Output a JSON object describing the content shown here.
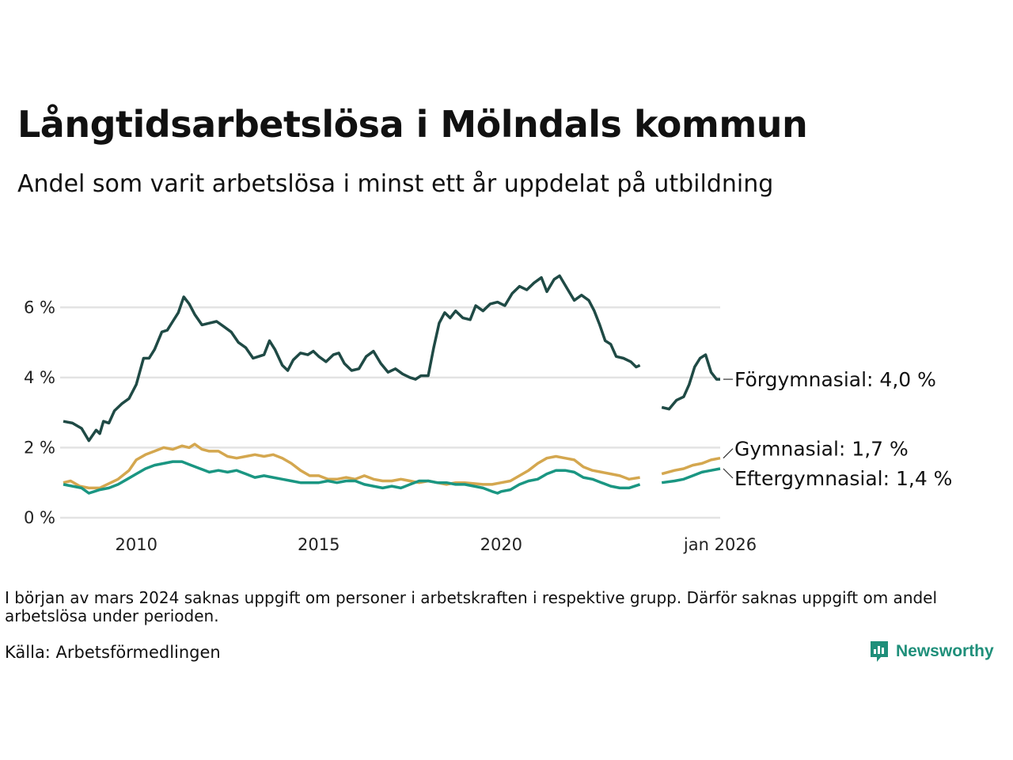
{
  "title": "Långtidsarbetslösa i Mölndals kommun",
  "subtitle": "Andel som varit arbetslösa i minst ett år uppdelat på utbildning",
  "note": "I början av mars 2024 saknas uppgift om personer i arbetskraften i respektive grupp. Därför saknas uppgift om andel arbetslösa under perioden.",
  "source": "Källa: Arbetsförmedlingen",
  "brand": {
    "name": "Newsworthy",
    "icon": "newsworthy-logo-icon"
  },
  "colors": {
    "forgymnasial": "#1f4a45",
    "gymnasial": "#d4a74f",
    "eftergymnasial": "#1a9682",
    "grid": "#e3e3e3"
  },
  "chart_data": {
    "type": "line",
    "title": "Långtidsarbetslösa i Mölndals kommun",
    "xlabel": "",
    "ylabel": "",
    "xlim": [
      2008.0,
      2026.0
    ],
    "ylim": [
      0,
      7
    ],
    "y_ticks": [
      {
        "value": 0,
        "label": "0 %"
      },
      {
        "value": 2,
        "label": "2 %"
      },
      {
        "value": 4,
        "label": "4 %"
      },
      {
        "value": 6,
        "label": "6 %"
      }
    ],
    "x_ticks": [
      {
        "value": 2010.0,
        "label": "2010"
      },
      {
        "value": 2015.0,
        "label": "2015"
      },
      {
        "value": 2020.0,
        "label": "2020"
      },
      {
        "value": 2026.0,
        "label": "jan 2026"
      }
    ],
    "gap": {
      "start": 2023.8,
      "end": 2024.4
    },
    "series": [
      {
        "name": "Förgymnasial",
        "end_label": "Förgymnasial: 4,0 %",
        "color": "#1f4a45",
        "points": [
          [
            2008.0,
            2.75
          ],
          [
            2008.25,
            2.7
          ],
          [
            2008.5,
            2.55
          ],
          [
            2008.7,
            2.2
          ],
          [
            2008.9,
            2.5
          ],
          [
            2009.0,
            2.4
          ],
          [
            2009.1,
            2.75
          ],
          [
            2009.25,
            2.7
          ],
          [
            2009.4,
            3.05
          ],
          [
            2009.6,
            3.25
          ],
          [
            2009.8,
            3.4
          ],
          [
            2010.0,
            3.8
          ],
          [
            2010.2,
            4.55
          ],
          [
            2010.35,
            4.55
          ],
          [
            2010.5,
            4.8
          ],
          [
            2010.7,
            5.3
          ],
          [
            2010.85,
            5.35
          ],
          [
            2011.0,
            5.6
          ],
          [
            2011.15,
            5.85
          ],
          [
            2011.3,
            6.3
          ],
          [
            2011.45,
            6.1
          ],
          [
            2011.6,
            5.8
          ],
          [
            2011.8,
            5.5
          ],
          [
            2012.0,
            5.55
          ],
          [
            2012.2,
            5.6
          ],
          [
            2012.4,
            5.45
          ],
          [
            2012.6,
            5.3
          ],
          [
            2012.8,
            5.0
          ],
          [
            2013.0,
            4.85
          ],
          [
            2013.2,
            4.55
          ],
          [
            2013.35,
            4.6
          ],
          [
            2013.5,
            4.65
          ],
          [
            2013.65,
            5.05
          ],
          [
            2013.8,
            4.8
          ],
          [
            2014.0,
            4.35
          ],
          [
            2014.15,
            4.2
          ],
          [
            2014.3,
            4.5
          ],
          [
            2014.5,
            4.7
          ],
          [
            2014.7,
            4.65
          ],
          [
            2014.85,
            4.75
          ],
          [
            2015.0,
            4.6
          ],
          [
            2015.2,
            4.45
          ],
          [
            2015.4,
            4.65
          ],
          [
            2015.55,
            4.7
          ],
          [
            2015.7,
            4.4
          ],
          [
            2015.9,
            4.2
          ],
          [
            2016.1,
            4.25
          ],
          [
            2016.3,
            4.6
          ],
          [
            2016.5,
            4.75
          ],
          [
            2016.7,
            4.4
          ],
          [
            2016.9,
            4.15
          ],
          [
            2017.1,
            4.25
          ],
          [
            2017.3,
            4.1
          ],
          [
            2017.5,
            4.0
          ],
          [
            2017.65,
            3.95
          ],
          [
            2017.8,
            4.05
          ],
          [
            2018.0,
            4.05
          ],
          [
            2018.15,
            4.85
          ],
          [
            2018.3,
            5.55
          ],
          [
            2018.45,
            5.85
          ],
          [
            2018.6,
            5.7
          ],
          [
            2018.75,
            5.9
          ],
          [
            2018.95,
            5.7
          ],
          [
            2019.15,
            5.65
          ],
          [
            2019.3,
            6.05
          ],
          [
            2019.5,
            5.9
          ],
          [
            2019.7,
            6.1
          ],
          [
            2019.9,
            6.15
          ],
          [
            2020.1,
            6.05
          ],
          [
            2020.3,
            6.4
          ],
          [
            2020.5,
            6.6
          ],
          [
            2020.7,
            6.5
          ],
          [
            2020.9,
            6.7
          ],
          [
            2021.1,
            6.85
          ],
          [
            2021.25,
            6.45
          ],
          [
            2021.45,
            6.8
          ],
          [
            2021.6,
            6.9
          ],
          [
            2021.8,
            6.55
          ],
          [
            2022.0,
            6.2
          ],
          [
            2022.2,
            6.35
          ],
          [
            2022.4,
            6.2
          ],
          [
            2022.55,
            5.9
          ],
          [
            2022.7,
            5.5
          ],
          [
            2022.85,
            5.05
          ],
          [
            2023.0,
            4.95
          ],
          [
            2023.15,
            4.6
          ],
          [
            2023.35,
            4.55
          ],
          [
            2023.55,
            4.45
          ],
          [
            2023.7,
            4.3
          ],
          [
            2023.8,
            4.35
          ],
          [
            2024.4,
            3.15
          ],
          [
            2024.6,
            3.1
          ],
          [
            2024.8,
            3.35
          ],
          [
            2025.0,
            3.45
          ],
          [
            2025.15,
            3.8
          ],
          [
            2025.3,
            4.3
          ],
          [
            2025.45,
            4.55
          ],
          [
            2025.6,
            4.65
          ],
          [
            2025.75,
            4.15
          ],
          [
            2025.9,
            3.95
          ],
          [
            2026.0,
            3.95
          ]
        ]
      },
      {
        "name": "Gymnasial",
        "end_label": "Gymnasial: 1,7 %",
        "color": "#d4a74f",
        "points": [
          [
            2008.0,
            1.0
          ],
          [
            2008.2,
            1.05
          ],
          [
            2008.45,
            0.9
          ],
          [
            2008.7,
            0.85
          ],
          [
            2009.0,
            0.85
          ],
          [
            2009.2,
            0.95
          ],
          [
            2009.5,
            1.1
          ],
          [
            2009.8,
            1.35
          ],
          [
            2010.0,
            1.65
          ],
          [
            2010.25,
            1.8
          ],
          [
            2010.5,
            1.9
          ],
          [
            2010.75,
            2.0
          ],
          [
            2011.0,
            1.95
          ],
          [
            2011.25,
            2.05
          ],
          [
            2011.45,
            2.0
          ],
          [
            2011.6,
            2.1
          ],
          [
            2011.8,
            1.95
          ],
          [
            2012.0,
            1.9
          ],
          [
            2012.25,
            1.9
          ],
          [
            2012.5,
            1.75
          ],
          [
            2012.75,
            1.7
          ],
          [
            2013.0,
            1.75
          ],
          [
            2013.25,
            1.8
          ],
          [
            2013.5,
            1.75
          ],
          [
            2013.75,
            1.8
          ],
          [
            2014.0,
            1.7
          ],
          [
            2014.25,
            1.55
          ],
          [
            2014.5,
            1.35
          ],
          [
            2014.75,
            1.2
          ],
          [
            2015.0,
            1.2
          ],
          [
            2015.25,
            1.1
          ],
          [
            2015.5,
            1.1
          ],
          [
            2015.75,
            1.15
          ],
          [
            2016.0,
            1.1
          ],
          [
            2016.25,
            1.2
          ],
          [
            2016.5,
            1.1
          ],
          [
            2016.75,
            1.05
          ],
          [
            2017.0,
            1.05
          ],
          [
            2017.25,
            1.1
          ],
          [
            2017.5,
            1.05
          ],
          [
            2017.75,
            1.0
          ],
          [
            2018.0,
            1.05
          ],
          [
            2018.25,
            1.0
          ],
          [
            2018.5,
            0.95
          ],
          [
            2018.75,
            1.0
          ],
          [
            2019.0,
            1.0
          ],
          [
            2019.5,
            0.95
          ],
          [
            2019.75,
            0.95
          ],
          [
            2020.0,
            1.0
          ],
          [
            2020.25,
            1.05
          ],
          [
            2020.5,
            1.2
          ],
          [
            2020.75,
            1.35
          ],
          [
            2021.0,
            1.55
          ],
          [
            2021.25,
            1.7
          ],
          [
            2021.5,
            1.75
          ],
          [
            2021.75,
            1.7
          ],
          [
            2022.0,
            1.65
          ],
          [
            2022.25,
            1.45
          ],
          [
            2022.5,
            1.35
          ],
          [
            2022.75,
            1.3
          ],
          [
            2023.0,
            1.25
          ],
          [
            2023.25,
            1.2
          ],
          [
            2023.5,
            1.1
          ],
          [
            2023.8,
            1.15
          ],
          [
            2024.4,
            1.25
          ],
          [
            2024.75,
            1.35
          ],
          [
            2025.0,
            1.4
          ],
          [
            2025.25,
            1.5
          ],
          [
            2025.5,
            1.55
          ],
          [
            2025.75,
            1.65
          ],
          [
            2026.0,
            1.7
          ]
        ]
      },
      {
        "name": "Eftergymnasial",
        "end_label": "Eftergymnasial: 1,4 %",
        "color": "#1a9682",
        "points": [
          [
            2008.0,
            0.95
          ],
          [
            2008.25,
            0.9
          ],
          [
            2008.5,
            0.85
          ],
          [
            2008.7,
            0.7
          ],
          [
            2008.85,
            0.75
          ],
          [
            2009.0,
            0.8
          ],
          [
            2009.25,
            0.85
          ],
          [
            2009.5,
            0.95
          ],
          [
            2009.75,
            1.1
          ],
          [
            2010.0,
            1.25
          ],
          [
            2010.25,
            1.4
          ],
          [
            2010.5,
            1.5
          ],
          [
            2010.75,
            1.55
          ],
          [
            2011.0,
            1.6
          ],
          [
            2011.25,
            1.6
          ],
          [
            2011.5,
            1.5
          ],
          [
            2011.75,
            1.4
          ],
          [
            2012.0,
            1.3
          ],
          [
            2012.25,
            1.35
          ],
          [
            2012.5,
            1.3
          ],
          [
            2012.75,
            1.35
          ],
          [
            2013.0,
            1.25
          ],
          [
            2013.25,
            1.15
          ],
          [
            2013.5,
            1.2
          ],
          [
            2013.75,
            1.15
          ],
          [
            2014.0,
            1.1
          ],
          [
            2014.25,
            1.05
          ],
          [
            2014.5,
            1.0
          ],
          [
            2014.75,
            1.0
          ],
          [
            2015.0,
            1.0
          ],
          [
            2015.25,
            1.05
          ],
          [
            2015.5,
            1.0
          ],
          [
            2015.75,
            1.05
          ],
          [
            2016.0,
            1.05
          ],
          [
            2016.25,
            0.95
          ],
          [
            2016.5,
            0.9
          ],
          [
            2016.75,
            0.85
          ],
          [
            2017.0,
            0.9
          ],
          [
            2017.25,
            0.85
          ],
          [
            2017.5,
            0.95
          ],
          [
            2017.75,
            1.05
          ],
          [
            2018.0,
            1.05
          ],
          [
            2018.25,
            1.0
          ],
          [
            2018.5,
            1.0
          ],
          [
            2018.75,
            0.95
          ],
          [
            2019.0,
            0.95
          ],
          [
            2019.25,
            0.9
          ],
          [
            2019.5,
            0.85
          ],
          [
            2019.75,
            0.75
          ],
          [
            2019.9,
            0.7
          ],
          [
            2020.0,
            0.75
          ],
          [
            2020.25,
            0.8
          ],
          [
            2020.5,
            0.95
          ],
          [
            2020.75,
            1.05
          ],
          [
            2021.0,
            1.1
          ],
          [
            2021.25,
            1.25
          ],
          [
            2021.5,
            1.35
          ],
          [
            2021.75,
            1.35
          ],
          [
            2022.0,
            1.3
          ],
          [
            2022.25,
            1.15
          ],
          [
            2022.5,
            1.1
          ],
          [
            2022.75,
            1.0
          ],
          [
            2023.0,
            0.9
          ],
          [
            2023.25,
            0.85
          ],
          [
            2023.5,
            0.85
          ],
          [
            2023.8,
            0.95
          ],
          [
            2024.4,
            1.0
          ],
          [
            2024.75,
            1.05
          ],
          [
            2025.0,
            1.1
          ],
          [
            2025.25,
            1.2
          ],
          [
            2025.5,
            1.3
          ],
          [
            2025.75,
            1.35
          ],
          [
            2026.0,
            1.4
          ]
        ]
      }
    ]
  }
}
